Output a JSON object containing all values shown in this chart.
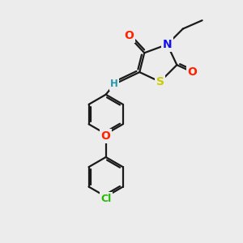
{
  "bg_color": "#ececec",
  "bond_color": "#1a1a1a",
  "bond_width": 1.6,
  "atom_colors": {
    "O": "#ff2200",
    "N": "#1111ee",
    "S": "#cccc00",
    "Cl": "#22bb00",
    "H": "#2299aa",
    "C": "#1a1a1a"
  },
  "font_size": 10,
  "font_size_small": 8.5,
  "font_size_cl": 9
}
